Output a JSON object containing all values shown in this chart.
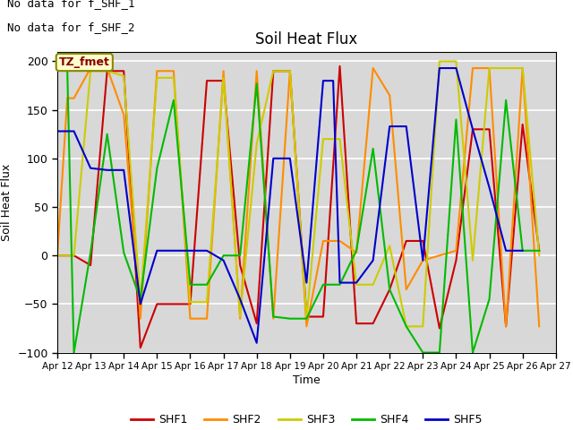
{
  "title": "Soil Heat Flux",
  "ylabel": "Soil Heat Flux",
  "xlabel": "Time",
  "annotation_line1": "No data for f_SHF_1",
  "annotation_line2": "No data for f_SHF_2",
  "box_label": "TZ_fmet",
  "ylim": [
    -100,
    210
  ],
  "yticks": [
    -100,
    -50,
    0,
    50,
    100,
    150,
    200
  ],
  "background_color": "#d8d8d8",
  "grid_color": "white",
  "series": {
    "SHF1": {
      "color": "#cc0000",
      "x": [
        12,
        12.5,
        13,
        13.5,
        14,
        14.5,
        15,
        15.5,
        16,
        16.5,
        17,
        17.5,
        18,
        18.5,
        19,
        19.5,
        20,
        20.5,
        21,
        21.5,
        22,
        22.5,
        23,
        23.5,
        24,
        24.5,
        25,
        25.5,
        26,
        26.5
      ],
      "y": [
        0,
        0,
        -10,
        190,
        190,
        -95,
        -50,
        -50,
        -50,
        180,
        180,
        -10,
        -70,
        190,
        190,
        -63,
        -63,
        195,
        -70,
        -70,
        -35,
        15,
        15,
        -75,
        -5,
        130,
        130,
        -73,
        135,
        5
      ]
    },
    "SHF2": {
      "color": "#ff8c00",
      "x": [
        12,
        12.3,
        12.5,
        13,
        13.5,
        14,
        14.5,
        15,
        15.5,
        16,
        16.5,
        17,
        17.5,
        18,
        18.5,
        19,
        19.5,
        20,
        20.5,
        21,
        21.5,
        22,
        22.5,
        23,
        23.5,
        24,
        24.5,
        25,
        25.5,
        26,
        26.5
      ],
      "y": [
        0,
        162,
        162,
        193,
        193,
        145,
        -65,
        190,
        190,
        -65,
        -65,
        190,
        -65,
        190,
        -65,
        190,
        -73,
        15,
        15,
        3,
        193,
        165,
        -35,
        -5,
        0,
        5,
        193,
        193,
        -73,
        193,
        -73
      ]
    },
    "SHF3": {
      "color": "#cccc00",
      "x": [
        12,
        12.5,
        13,
        13.5,
        14,
        14.5,
        15,
        15.5,
        16,
        16.5,
        17,
        17.5,
        18,
        18.5,
        19,
        19.5,
        20,
        20.5,
        21,
        21.5,
        22,
        22.5,
        23,
        23.5,
        24,
        24.5,
        25,
        25.5,
        26,
        26.5
      ],
      "y": [
        0,
        0,
        190,
        190,
        185,
        -48,
        183,
        183,
        -48,
        -48,
        183,
        -63,
        115,
        190,
        190,
        -65,
        120,
        120,
        -30,
        -30,
        10,
        -73,
        -73,
        200,
        200,
        -5,
        193,
        193,
        193,
        0
      ]
    },
    "SHF4": {
      "color": "#00bb00",
      "x": [
        12,
        12.3,
        12.5,
        13,
        13.5,
        14,
        14.5,
        15,
        15.5,
        16,
        16.5,
        17,
        17.5,
        18,
        18.5,
        19,
        19.5,
        20,
        20.5,
        21,
        21.5,
        22,
        22.5,
        23,
        23.5,
        24,
        24.5,
        25,
        25.5,
        26,
        26.5
      ],
      "y": [
        193,
        193,
        -100,
        3,
        125,
        3,
        -45,
        90,
        160,
        -30,
        -30,
        0,
        0,
        177,
        -63,
        -65,
        -65,
        -30,
        -30,
        5,
        110,
        -35,
        -73,
        -100,
        -100,
        140,
        -100,
        -45,
        160,
        5,
        5
      ]
    },
    "SHF5": {
      "color": "#0000cc",
      "x": [
        12,
        12.5,
        13,
        13.5,
        14,
        14.5,
        15,
        15.5,
        16,
        16.5,
        17,
        17.5,
        18,
        18.5,
        19,
        19.5,
        20,
        20.3,
        20.5,
        21,
        21.5,
        22,
        22.5,
        23,
        23.5,
        24,
        24.5,
        25,
        25.5,
        26
      ],
      "y": [
        128,
        128,
        90,
        88,
        88,
        -50,
        5,
        5,
        5,
        5,
        -5,
        -45,
        -90,
        100,
        100,
        -28,
        180,
        180,
        -28,
        -28,
        -5,
        133,
        133,
        -5,
        193,
        193,
        130,
        70,
        5,
        5
      ]
    }
  },
  "xtick_labels": [
    "Apr 12",
    "Apr 13",
    "Apr 14",
    "Apr 15",
    "Apr 16",
    "Apr 17",
    "Apr 18",
    "Apr 19",
    "Apr 20",
    "Apr 21",
    "Apr 22",
    "Apr 23",
    "Apr 24",
    "Apr 25",
    "Apr 26",
    "Apr 27"
  ],
  "xtick_positions": [
    12,
    13,
    14,
    15,
    16,
    17,
    18,
    19,
    20,
    21,
    22,
    23,
    24,
    25,
    26,
    27
  ]
}
